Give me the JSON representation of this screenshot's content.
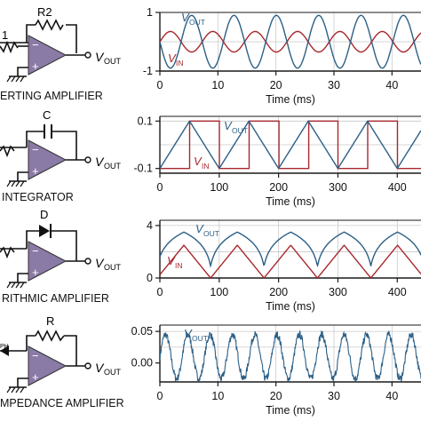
{
  "colors": {
    "vout": "#2b5f86",
    "vin": "#a8282d",
    "opamp_fill": "#8a7aa6",
    "grid": "#c9c9c9",
    "axis": "#1a1a1a"
  },
  "labels": {
    "vout_main": "V",
    "vout_sub": "OUT",
    "vin_main": "V",
    "vin_sub": "IN",
    "time_axis": "Time (ms)"
  },
  "circuits": [
    {
      "title": "ERTING AMPLIFIER",
      "feedback": "R2",
      "input": "1"
    },
    {
      "title": "INTEGRATOR",
      "feedback": "C"
    },
    {
      "title": "RITHMIC AMPLIFIER",
      "feedback": "D"
    },
    {
      "title": "MPEDANCE AMPLIFIER",
      "feedback": "R",
      "input": "PH"
    }
  ],
  "chart_data": [
    {
      "type": "line",
      "xlabel": "Time (ms)",
      "x_ticks": [
        "0",
        "10",
        "20",
        "30",
        "40"
      ],
      "y_ticks": [
        "1",
        "-1"
      ],
      "xlim": [
        0,
        45
      ],
      "ylim": [
        -1,
        1
      ],
      "series": [
        {
          "name": "V_OUT",
          "shape": "sine",
          "amplitude": 0.9,
          "period_ms": 7.3,
          "phase": "inverted"
        },
        {
          "name": "V_IN",
          "shape": "sine",
          "amplitude": 0.35,
          "period_ms": 7.3
        }
      ]
    },
    {
      "type": "line",
      "xlabel": "Time (ms)",
      "x_ticks": [
        "0",
        "100",
        "200",
        "300",
        "400"
      ],
      "y_ticks": [
        "0.1",
        "-0.1"
      ],
      "xlim": [
        0,
        440
      ],
      "ylim": [
        -0.12,
        0.12
      ],
      "series": [
        {
          "name": "V_OUT",
          "shape": "triangle",
          "amplitude": 0.1,
          "period_ms": 100
        },
        {
          "name": "V_IN",
          "shape": "square",
          "amplitude": 0.1,
          "period_ms": 100
        }
      ]
    },
    {
      "type": "line",
      "xlabel": "Time (ms)",
      "x_ticks": [
        "0",
        "100",
        "200",
        "300",
        "400"
      ],
      "y_ticks": [
        "4",
        "0"
      ],
      "xlim": [
        0,
        440
      ],
      "ylim": [
        0,
        4.4
      ],
      "series": [
        {
          "name": "V_OUT",
          "shape": "log-arch",
          "peak": 3.5,
          "period_ms": 90
        },
        {
          "name": "V_IN",
          "shape": "abs-triangle",
          "peak": 2.5,
          "period_ms": 90
        }
      ]
    },
    {
      "type": "line",
      "xlabel": "Time (ms)",
      "x_ticks": [
        "0",
        "10",
        "20",
        "30",
        "40"
      ],
      "y_ticks": [
        "0.05",
        "0.00"
      ],
      "xlim": [
        0,
        45
      ],
      "ylim": [
        -0.03,
        0.06
      ],
      "series": [
        {
          "name": "V_OUT",
          "shape": "noisy-sine",
          "amplitude": 0.035,
          "period_ms": 3.85
        }
      ]
    }
  ]
}
